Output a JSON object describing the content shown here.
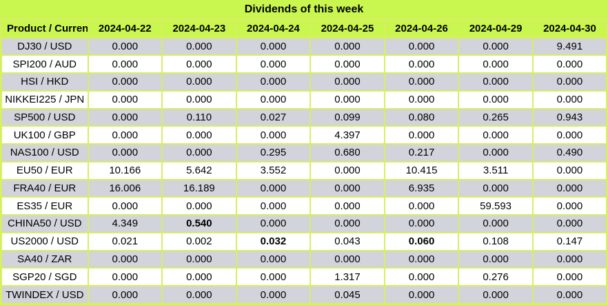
{
  "chart_data": {
    "type": "table",
    "title": "Dividends of this week",
    "columns": [
      "Product / Currency",
      "2024-04-22",
      "2024-04-23",
      "2024-04-24",
      "2024-04-25",
      "2024-04-26",
      "2024-04-29",
      "2024-04-30"
    ],
    "rows": [
      {
        "product": "DJ30 / USD",
        "values": [
          "0.000",
          "0.000",
          "0.000",
          "0.000",
          "0.000",
          "0.000",
          "9.491"
        ],
        "bold_value_indices": []
      },
      {
        "product": "SPI200 / AUD",
        "values": [
          "0.000",
          "0.000",
          "0.000",
          "0.000",
          "0.000",
          "0.000",
          "0.000"
        ],
        "bold_value_indices": []
      },
      {
        "product": "HSI / HKD",
        "values": [
          "0.000",
          "0.000",
          "0.000",
          "0.000",
          "0.000",
          "0.000",
          "0.000"
        ],
        "bold_value_indices": []
      },
      {
        "product": "NIKKEI225 / JPN",
        "values": [
          "0.000",
          "0.000",
          "0.000",
          "0.000",
          "0.000",
          "0.000",
          "0.000"
        ],
        "bold_value_indices": []
      },
      {
        "product": "SP500 / USD",
        "values": [
          "0.000",
          "0.110",
          "0.027",
          "0.099",
          "0.080",
          "0.265",
          "0.943"
        ],
        "bold_value_indices": []
      },
      {
        "product": "UK100 / GBP",
        "values": [
          "0.000",
          "0.000",
          "0.000",
          "4.397",
          "0.000",
          "0.000",
          "0.000"
        ],
        "bold_value_indices": []
      },
      {
        "product": "NAS100 / USD",
        "values": [
          "0.000",
          "0.000",
          "0.295",
          "0.680",
          "0.217",
          "0.000",
          "0.490"
        ],
        "bold_value_indices": []
      },
      {
        "product": "EU50 / EUR",
        "values": [
          "10.166",
          "5.642",
          "3.552",
          "0.000",
          "10.415",
          "3.511",
          "0.000"
        ],
        "bold_value_indices": []
      },
      {
        "product": "FRA40 / EUR",
        "values": [
          "16.006",
          "16.189",
          "0.000",
          "0.000",
          "6.935",
          "0.000",
          "0.000"
        ],
        "bold_value_indices": []
      },
      {
        "product": "ES35 / EUR",
        "values": [
          "0.000",
          "0.000",
          "0.000",
          "0.000",
          "0.000",
          "59.593",
          "0.000"
        ],
        "bold_value_indices": []
      },
      {
        "product": "CHINA50 / USD",
        "values": [
          "4.349",
          "0.540",
          "0.000",
          "0.000",
          "0.000",
          "0.000",
          "0.000"
        ],
        "bold_value_indices": [
          1
        ]
      },
      {
        "product": "US2000 / USD",
        "values": [
          "0.021",
          "0.002",
          "0.032",
          "0.043",
          "0.060",
          "0.108",
          "0.147"
        ],
        "bold_value_indices": [
          2,
          4
        ]
      },
      {
        "product": "SA40 / ZAR",
        "values": [
          "0.000",
          "0.000",
          "0.000",
          "0.000",
          "0.000",
          "0.000",
          "0.000"
        ],
        "bold_value_indices": []
      },
      {
        "product": "SGP20 / SGD",
        "values": [
          "0.000",
          "0.000",
          "0.000",
          "1.317",
          "0.000",
          "0.276",
          "0.000"
        ],
        "bold_value_indices": []
      },
      {
        "product": "TWINDEX / USD",
        "values": [
          "0.000",
          "0.000",
          "0.000",
          "0.045",
          "0.000",
          "0.000",
          "0.000"
        ],
        "bold_value_indices": []
      }
    ]
  },
  "colors": {
    "accent_green": "#c9f64f",
    "grid_green": "#d7ef62",
    "row_alt_gray": "#d2d3db",
    "row_white": "#ffffff",
    "text": "#000000"
  }
}
